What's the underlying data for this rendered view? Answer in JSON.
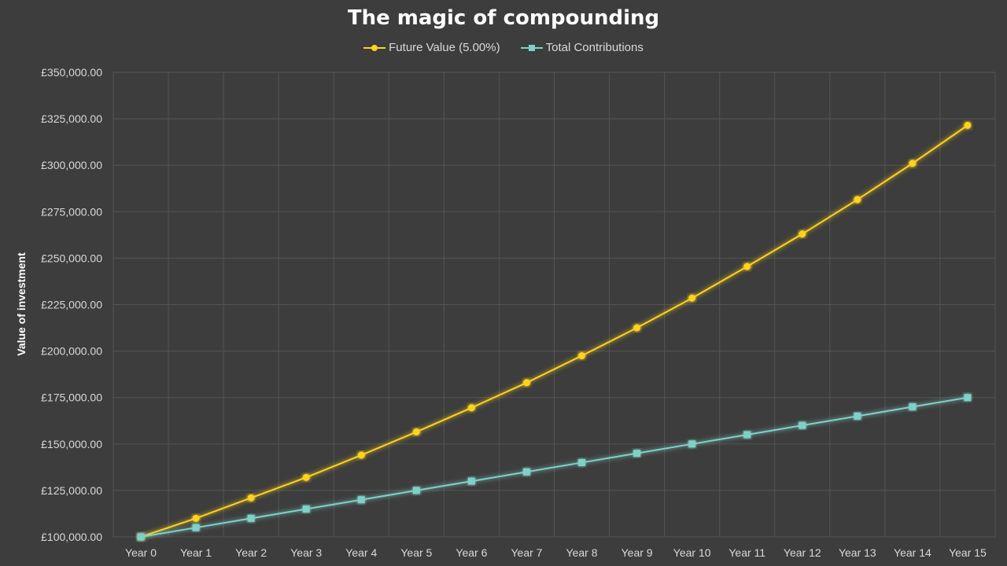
{
  "chart_data": {
    "type": "line",
    "title": "The magic of compounding",
    "ylabel": "Value of investment",
    "xlabel": "",
    "categories": [
      "Year 0",
      "Year 1",
      "Year 2",
      "Year 3",
      "Year 4",
      "Year 5",
      "Year 6",
      "Year 7",
      "Year 8",
      "Year 9",
      "Year 10",
      "Year 11",
      "Year 12",
      "Year 13",
      "Year 14",
      "Year 15"
    ],
    "ylim": [
      100000,
      350000
    ],
    "yticks": [
      100000,
      125000,
      150000,
      175000,
      200000,
      225000,
      250000,
      275000,
      300000,
      325000,
      350000
    ],
    "ytick_labels": [
      "£100,000.00",
      "£125,000.00",
      "£150,000.00",
      "£175,000.00",
      "£200,000.00",
      "£225,000.00",
      "£250,000.00",
      "£275,000.00",
      "£300,000.00",
      "£325,000.00",
      "£350,000.00"
    ],
    "grid": true,
    "legend_position": "top-center",
    "series": [
      {
        "name": "Future Value (5.00%)",
        "color": "#ffd21f",
        "marker": "circle",
        "values": [
          100000,
          110000,
          121000,
          132000,
          144000,
          156500,
          169500,
          183000,
          197500,
          212500,
          228500,
          245500,
          263000,
          281500,
          301000,
          321500
        ]
      },
      {
        "name": "Total Contributions",
        "color": "#7fd1c7",
        "marker": "square",
        "values": [
          100000,
          105000,
          110000,
          115000,
          120000,
          125000,
          130000,
          135000,
          140000,
          145000,
          150000,
          155000,
          160000,
          165000,
          170000,
          175000
        ]
      }
    ]
  }
}
